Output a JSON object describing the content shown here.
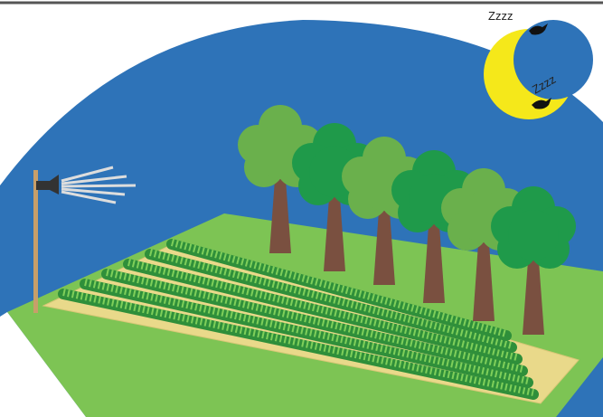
{
  "labels": {
    "snore_top": "Zzzz",
    "snore_bottom": "Zzzz"
  }
}
